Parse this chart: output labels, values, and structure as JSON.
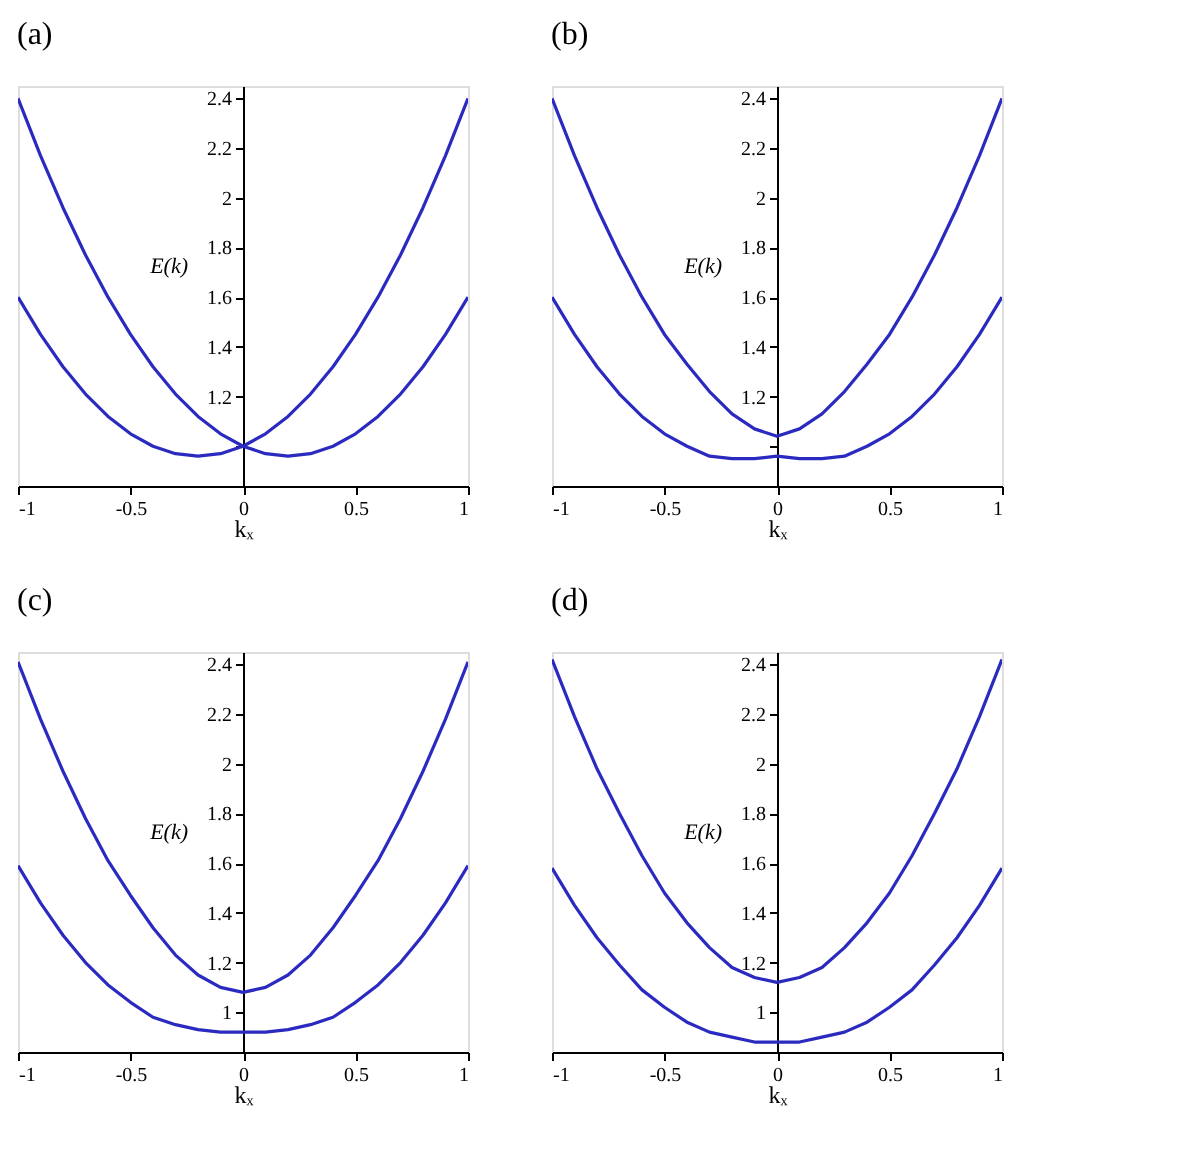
{
  "chart_data": [
    {
      "type": "line",
      "title": "(a)",
      "xlabel": "kₓ",
      "ylabel": "E(k)",
      "x": [
        -1,
        -0.9,
        -0.8,
        -0.7,
        -0.6,
        -0.5,
        -0.4,
        -0.3,
        -0.2,
        -0.1,
        0,
        0.1,
        0.2,
        0.3,
        0.4,
        0.5,
        0.6,
        0.7,
        0.8,
        0.9,
        1
      ],
      "xlim": [
        -1,
        1
      ],
      "xticks": [
        -1,
        -0.5,
        0,
        0.5,
        1
      ],
      "ylim": [
        0.84,
        2.45
      ],
      "yticks": [
        {
          "value": 1,
          "label": null
        },
        1.2,
        1.4,
        1.6,
        1.8,
        2,
        2.2,
        2.4
      ],
      "grid": false,
      "line_style": "solid",
      "series": [
        {
          "color": "#2a2ac0",
          "values": [
            1.6,
            1.45,
            1.32,
            1.21,
            1.12,
            1.05,
            1.0,
            0.97,
            0.96,
            0.97,
            1.0,
            1.05,
            1.12,
            1.21,
            1.32,
            1.45,
            1.6,
            1.77,
            1.96,
            2.17,
            2.4
          ]
        },
        {
          "color": "#2a2ac0",
          "values": [
            2.4,
            2.17,
            1.96,
            1.77,
            1.6,
            1.45,
            1.32,
            1.21,
            1.12,
            1.05,
            1.0,
            0.97,
            0.96,
            0.97,
            1.0,
            1.05,
            1.12,
            1.21,
            1.32,
            1.45,
            1.6
          ]
        }
      ]
    },
    {
      "type": "line",
      "title": "(b)",
      "xlabel": "kₓ",
      "ylabel": "E(k)",
      "x": [
        -1,
        -0.9,
        -0.8,
        -0.7,
        -0.6,
        -0.5,
        -0.4,
        -0.3,
        -0.2,
        -0.1,
        0,
        0.1,
        0.2,
        0.3,
        0.4,
        0.5,
        0.6,
        0.7,
        0.8,
        0.9,
        1
      ],
      "xlim": [
        -1,
        1
      ],
      "xticks": [
        -1,
        -0.5,
        0,
        0.5,
        1
      ],
      "ylim": [
        0.84,
        2.45
      ],
      "yticks": [
        {
          "value": 1,
          "label": null
        },
        1.2,
        1.4,
        1.6,
        1.8,
        2,
        2.2,
        2.4
      ],
      "grid": false,
      "line_style": "solid",
      "series": [
        {
          "color": "#2a2ac0",
          "values": [
            2.4,
            2.17,
            1.96,
            1.77,
            1.6,
            1.45,
            1.33,
            1.22,
            1.13,
            1.07,
            1.04,
            1.07,
            1.13,
            1.22,
            1.33,
            1.45,
            1.6,
            1.77,
            1.96,
            2.17,
            2.4
          ]
        },
        {
          "color": "#2a2ac0",
          "values": [
            1.6,
            1.45,
            1.32,
            1.21,
            1.12,
            1.05,
            1.0,
            0.96,
            0.95,
            0.95,
            0.96,
            0.95,
            0.95,
            0.96,
            1.0,
            1.05,
            1.12,
            1.21,
            1.32,
            1.45,
            1.6
          ]
        }
      ]
    },
    {
      "type": "line",
      "title": "(c)",
      "xlabel": "kₓ",
      "ylabel": "E(k)",
      "x": [
        -1,
        -0.9,
        -0.8,
        -0.7,
        -0.6,
        -0.5,
        -0.4,
        -0.3,
        -0.2,
        -0.1,
        0,
        0.1,
        0.2,
        0.3,
        0.4,
        0.5,
        0.6,
        0.7,
        0.8,
        0.9,
        1
      ],
      "xlim": [
        -1,
        1
      ],
      "xticks": [
        -1,
        -0.5,
        0,
        0.5,
        1
      ],
      "ylim": [
        0.84,
        2.45
      ],
      "yticks": [
        1,
        1.2,
        1.4,
        1.6,
        1.8,
        2,
        2.2,
        2.4
      ],
      "grid": false,
      "line_style": "solid",
      "series": [
        {
          "color": "#2a2ac0",
          "values": [
            2.41,
            2.18,
            1.97,
            1.78,
            1.61,
            1.47,
            1.34,
            1.23,
            1.15,
            1.1,
            1.08,
            1.1,
            1.15,
            1.23,
            1.34,
            1.47,
            1.61,
            1.78,
            1.97,
            2.18,
            2.41
          ]
        },
        {
          "color": "#2a2ac0",
          "values": [
            1.59,
            1.44,
            1.31,
            1.2,
            1.11,
            1.04,
            0.98,
            0.95,
            0.93,
            0.92,
            0.92,
            0.92,
            0.93,
            0.95,
            0.98,
            1.04,
            1.11,
            1.2,
            1.31,
            1.44,
            1.59
          ]
        }
      ]
    },
    {
      "type": "line",
      "title": "(d)",
      "xlabel": "kₓ",
      "ylabel": "E(k)",
      "x": [
        -1,
        -0.9,
        -0.8,
        -0.7,
        -0.6,
        -0.5,
        -0.4,
        -0.3,
        -0.2,
        -0.1,
        0,
        0.1,
        0.2,
        0.3,
        0.4,
        0.5,
        0.6,
        0.7,
        0.8,
        0.9,
        1
      ],
      "xlim": [
        -1,
        1
      ],
      "xticks": [
        -1,
        -0.5,
        0,
        0.5,
        1
      ],
      "ylim": [
        0.84,
        2.45
      ],
      "yticks": [
        1,
        1.2,
        1.4,
        1.6,
        1.8,
        2,
        2.2,
        2.4
      ],
      "grid": false,
      "line_style": "solid",
      "series": [
        {
          "color": "#2a2ac0",
          "values": [
            2.42,
            2.19,
            1.98,
            1.8,
            1.63,
            1.48,
            1.36,
            1.26,
            1.18,
            1.14,
            1.12,
            1.14,
            1.18,
            1.26,
            1.36,
            1.48,
            1.63,
            1.8,
            1.98,
            2.19,
            2.42
          ]
        },
        {
          "color": "#2a2ac0",
          "values": [
            1.58,
            1.43,
            1.3,
            1.19,
            1.09,
            1.02,
            0.96,
            0.92,
            0.9,
            0.88,
            0.88,
            0.88,
            0.9,
            0.92,
            0.96,
            1.02,
            1.09,
            1.19,
            1.3,
            1.43,
            1.58
          ]
        }
      ]
    }
  ]
}
